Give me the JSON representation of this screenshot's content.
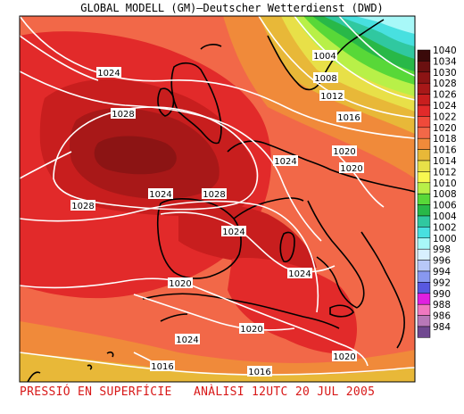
{
  "title": "GLOBAL MODELL (GM)—Deutscher Wetterdienst (DWD)",
  "caption": "PRESSIÓ EN SUPERFÍCIE   ANÀLISI 12UTC 20 JUL 2005",
  "legend": {
    "levels": [
      {
        "label": "1040",
        "color": "#3a0a0a"
      },
      {
        "label": "1034",
        "color": "#6a1010"
      },
      {
        "label": "1030",
        "color": "#8c1414"
      },
      {
        "label": "1028",
        "color": "#a81818"
      },
      {
        "label": "1026",
        "color": "#c81e1e"
      },
      {
        "label": "1024",
        "color": "#e22a2a"
      },
      {
        "label": "1022",
        "color": "#f04a3a"
      },
      {
        "label": "1020",
        "color": "#f26848"
      },
      {
        "label": "1018",
        "color": "#f08a3a"
      },
      {
        "label": "1016",
        "color": "#e8b838"
      },
      {
        "label": "1014",
        "color": "#e8e048"
      },
      {
        "label": "1012",
        "color": "#f8f850"
      },
      {
        "label": "1010",
        "color": "#b8f048"
      },
      {
        "label": "1008",
        "color": "#58d838"
      },
      {
        "label": "1006",
        "color": "#28b848"
      },
      {
        "label": "1004",
        "color": "#30c8a0"
      },
      {
        "label": "1002",
        "color": "#48e0e0"
      },
      {
        "label": "1000",
        "color": "#a8f8f8"
      },
      {
        "label": "998",
        "color": "#d8f0ff"
      },
      {
        "label": "996",
        "color": "#b8c8f8"
      },
      {
        "label": "994",
        "color": "#8898f0"
      },
      {
        "label": "992",
        "color": "#5858e0"
      },
      {
        "label": "990",
        "color": "#e020e0"
      },
      {
        "label": "988",
        "color": "#f078c0"
      },
      {
        "label": "986",
        "color": "#b878b8"
      },
      {
        "label": "984",
        "color": "#704890"
      }
    ]
  },
  "isobar_labels": [
    {
      "text": "1004"
    },
    {
      "text": "1008"
    },
    {
      "text": "1012"
    },
    {
      "text": "1016"
    },
    {
      "text": "1024"
    },
    {
      "text": "1028"
    },
    {
      "text": "1020"
    },
    {
      "text": "1024"
    },
    {
      "text": "1020"
    },
    {
      "text": "1028"
    },
    {
      "text": "1024"
    },
    {
      "text": "1028"
    },
    {
      "text": "1024"
    },
    {
      "text": "1024"
    },
    {
      "text": "1020"
    },
    {
      "text": "1020"
    },
    {
      "text": "1024"
    },
    {
      "text": "1020"
    },
    {
      "text": "1016"
    },
    {
      "text": "1016"
    },
    {
      "text": "1020"
    }
  ]
}
